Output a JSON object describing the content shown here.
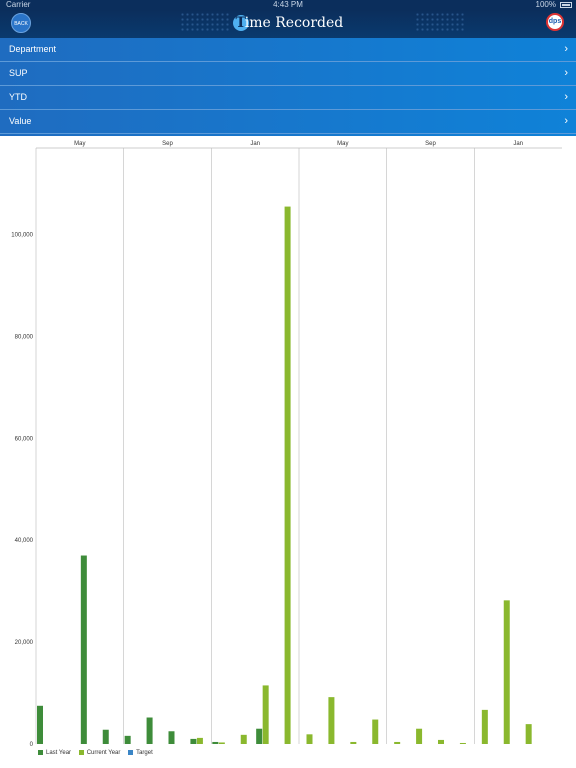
{
  "status": {
    "carrier": "Carrier",
    "time": "4:43 PM",
    "battery": "100%"
  },
  "header": {
    "back_label": "BACK",
    "title_first": "T",
    "title_rest": "ime Recorded",
    "logo_text": "dps"
  },
  "menu": {
    "items": [
      {
        "label": "Department"
      },
      {
        "label": "SUP"
      },
      {
        "label": "YTD"
      },
      {
        "label": "Value"
      }
    ]
  },
  "chart_data": {
    "type": "bar",
    "x_labels": [
      "May",
      "Sep",
      "Jan",
      "May",
      "Sep",
      "Jan"
    ],
    "y_ticks": [
      "0",
      "20,000",
      "40,000",
      "60,000",
      "80,000",
      "100,000"
    ],
    "ylim": [
      0,
      117000
    ],
    "grid": "vertical",
    "legend_placement": "bottom-left",
    "series": [
      {
        "name": "Last Year",
        "color": "#3e8c3a",
        "values": [
          7500,
          0,
          37000,
          2800,
          1600,
          5200,
          2500,
          1000,
          400,
          0,
          3000,
          0,
          0,
          0,
          0,
          0,
          0,
          0,
          0,
          0,
          0,
          0,
          0,
          0
        ]
      },
      {
        "name": "Current Year",
        "color": "#8ab82e",
        "values": [
          0,
          0,
          0,
          0,
          0,
          0,
          0,
          1200,
          300,
          1800,
          11500,
          105500,
          1900,
          9200,
          400,
          4800,
          400,
          3000,
          800,
          200,
          6700,
          28200,
          3900,
          0
        ]
      },
      {
        "name": "Target",
        "color": "#3b86c6",
        "values": [
          0,
          0,
          0,
          0,
          0,
          0,
          0,
          0,
          0,
          0,
          0,
          0,
          0,
          0,
          0,
          0,
          0,
          0,
          0,
          0,
          0,
          0,
          0,
          0
        ]
      }
    ]
  }
}
